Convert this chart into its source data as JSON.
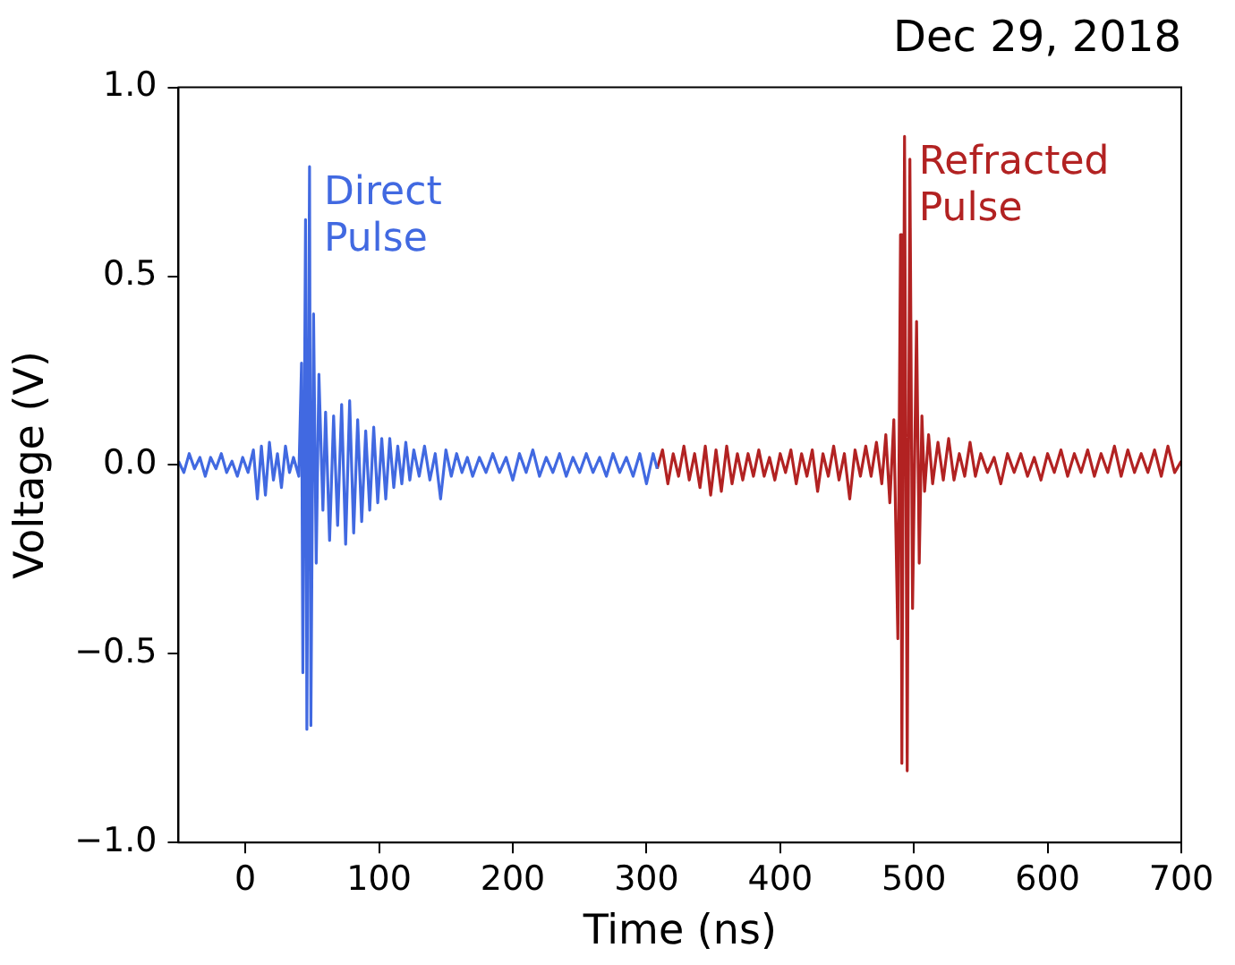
{
  "chart_data": {
    "type": "line",
    "title": "Dec 29, 2018",
    "xlabel": "Time (ns)",
    "ylabel": "Voltage (V)",
    "xlim": [
      -50,
      700
    ],
    "xticks": [
      0,
      100,
      200,
      300,
      400,
      500,
      600,
      700
    ],
    "ylim": [
      -1,
      1
    ],
    "yticks": [
      {
        "value": -1,
        "label": "−1.0"
      },
      {
        "value": -0.5,
        "label": "−0.5"
      },
      {
        "value": 0,
        "label": "0.0"
      },
      {
        "value": 0.5,
        "label": "0.5"
      },
      {
        "value": 1,
        "label": "1.0"
      }
    ],
    "grid": false,
    "legend": false,
    "marker": "none",
    "line_style": "solid",
    "annotations": [
      "Direct\nPulse",
      "Refracted\nPulse"
    ],
    "series": [
      {
        "color": "#4169e1",
        "x": [
          -50,
          -46,
          -42,
          -38,
          -34,
          -30,
          -26,
          -22,
          -18,
          -14,
          -10,
          -6,
          -2,
          2,
          6,
          9,
          12,
          15,
          18,
          21,
          24,
          27,
          30,
          33,
          36,
          40,
          42,
          43,
          45,
          46,
          48,
          49,
          51,
          53,
          55,
          58,
          60,
          63,
          66,
          69,
          72,
          75,
          78,
          81,
          84,
          87,
          90,
          93,
          96,
          99,
          102,
          105,
          108,
          111,
          114,
          117,
          120,
          123,
          126,
          130,
          134,
          138,
          142,
          146,
          150,
          154,
          158,
          162,
          166,
          170,
          175,
          180,
          185,
          190,
          195,
          200,
          205,
          210,
          215,
          220,
          225,
          230,
          235,
          240,
          245,
          250,
          255,
          260,
          265,
          270,
          275,
          280,
          285,
          290,
          295,
          300,
          305,
          308
        ],
        "values": [
          0.01,
          -0.02,
          0.03,
          -0.01,
          0.02,
          -0.03,
          0.02,
          -0.01,
          0.03,
          -0.02,
          0.01,
          -0.03,
          0.02,
          -0.02,
          0.04,
          -0.09,
          0.05,
          -0.08,
          0.06,
          -0.04,
          0.03,
          -0.06,
          0.05,
          -0.02,
          0.02,
          -0.03,
          0.27,
          -0.55,
          0.65,
          -0.7,
          0.79,
          -0.69,
          0.4,
          -0.26,
          0.24,
          -0.12,
          0.14,
          -0.2,
          0.13,
          -0.16,
          0.16,
          -0.21,
          0.17,
          -0.18,
          0.12,
          -0.15,
          0.09,
          -0.12,
          0.1,
          -0.1,
          0.07,
          -0.09,
          0.07,
          -0.06,
          0.05,
          -0.05,
          0.06,
          -0.04,
          0.04,
          -0.03,
          0.05,
          -0.04,
          0.03,
          -0.09,
          0.04,
          -0.03,
          0.03,
          -0.02,
          0.02,
          -0.03,
          0.02,
          -0.02,
          0.03,
          -0.02,
          0.02,
          -0.04,
          0.03,
          -0.02,
          0.04,
          -0.03,
          0.02,
          -0.02,
          0.03,
          -0.03,
          0.02,
          -0.02,
          0.03,
          -0.02,
          0.02,
          -0.03,
          0.03,
          -0.02,
          0.02,
          -0.03,
          0.03,
          -0.05,
          0.03,
          -0.01
        ]
      },
      {
        "color": "#b22222",
        "x": [
          308,
          312,
          316,
          320,
          324,
          328,
          332,
          336,
          340,
          344,
          348,
          352,
          356,
          360,
          364,
          368,
          372,
          376,
          380,
          384,
          388,
          392,
          396,
          400,
          404,
          408,
          412,
          416,
          420,
          424,
          428,
          432,
          436,
          440,
          444,
          448,
          452,
          456,
          460,
          464,
          468,
          472,
          476,
          479,
          482,
          485,
          488,
          490,
          491,
          493,
          495,
          497,
          499,
          502,
          504,
          506,
          508,
          511,
          514,
          518,
          522,
          526,
          530,
          534,
          538,
          542,
          546,
          550,
          555,
          560,
          565,
          570,
          575,
          580,
          585,
          590,
          595,
          600,
          605,
          610,
          615,
          620,
          625,
          630,
          635,
          640,
          645,
          650,
          655,
          660,
          665,
          670,
          675,
          680,
          685,
          690,
          695,
          700
        ],
        "values": [
          -0.01,
          0.04,
          -0.05,
          0.03,
          -0.03,
          0.05,
          -0.04,
          0.03,
          -0.06,
          0.05,
          -0.08,
          0.04,
          -0.07,
          0.05,
          -0.05,
          0.03,
          -0.04,
          0.03,
          -0.03,
          0.04,
          -0.03,
          0.02,
          -0.04,
          0.03,
          -0.02,
          0.04,
          -0.05,
          0.03,
          -0.03,
          0.04,
          -0.07,
          0.03,
          -0.03,
          0.05,
          -0.04,
          0.03,
          -0.09,
          0.04,
          -0.03,
          0.05,
          -0.03,
          0.06,
          -0.05,
          0.08,
          -0.1,
          0.12,
          -0.46,
          0.61,
          -0.79,
          0.87,
          -0.81,
          0.81,
          -0.38,
          0.38,
          -0.26,
          0.13,
          -0.07,
          0.08,
          -0.05,
          0.06,
          -0.04,
          0.07,
          -0.04,
          0.03,
          -0.03,
          0.06,
          -0.03,
          0.03,
          -0.02,
          0.02,
          -0.05,
          0.03,
          -0.02,
          0.03,
          -0.03,
          0.02,
          -0.04,
          0.03,
          -0.02,
          0.04,
          -0.03,
          0.03,
          -0.02,
          0.04,
          -0.03,
          0.03,
          -0.02,
          0.05,
          -0.03,
          0.04,
          -0.02,
          0.03,
          -0.02,
          0.04,
          -0.03,
          0.05,
          -0.02,
          0.01
        ]
      }
    ]
  }
}
